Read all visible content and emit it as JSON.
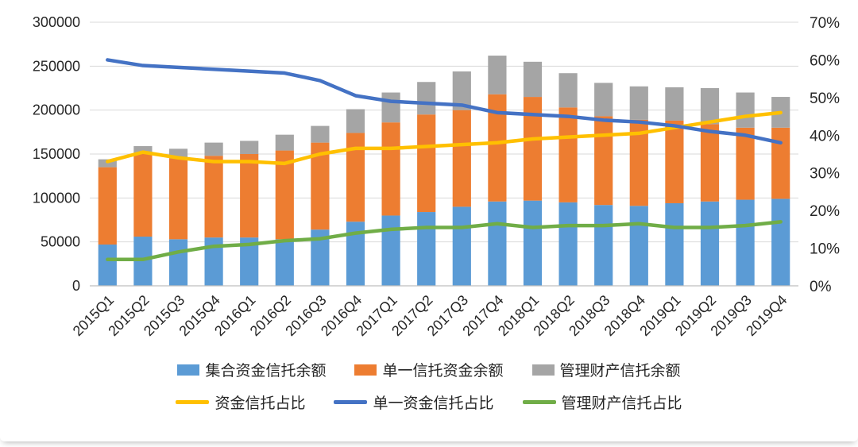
{
  "chart_data": {
    "type": "combo-stacked-bar-line",
    "categories": [
      "2015Q1",
      "2015Q2",
      "2015Q3",
      "2015Q4",
      "2016Q1",
      "2016Q2",
      "2016Q3",
      "2016Q4",
      "2017Q1",
      "2017Q2",
      "2017Q3",
      "2017Q4",
      "2018Q1",
      "2018Q2",
      "2018Q3",
      "2018Q4",
      "2019Q1",
      "2019Q2",
      "2019Q3",
      "2019Q4"
    ],
    "bar_series": [
      {
        "name": "集合资金信托余额",
        "color": "#5B9BD5",
        "axis": "left",
        "values": [
          47000,
          56000,
          53000,
          55000,
          55000,
          53000,
          64000,
          73000,
          80000,
          84000,
          90000,
          96000,
          97000,
          95000,
          92000,
          91000,
          94000,
          96000,
          98000,
          99000
        ]
      },
      {
        "name": "单一信托资金余额",
        "color": "#ED7D31",
        "axis": "left",
        "values": [
          88000,
          95000,
          92000,
          93000,
          95000,
          101000,
          99000,
          101000,
          106000,
          111000,
          110000,
          122000,
          118000,
          108000,
          101000,
          98000,
          94000,
          88000,
          82000,
          81000
        ]
      },
      {
        "name": "管理财产信托余额",
        "color": "#A5A5A5",
        "axis": "left",
        "values": [
          9000,
          8000,
          11000,
          15000,
          15000,
          18000,
          19000,
          27000,
          34000,
          37000,
          44000,
          44000,
          40000,
          39000,
          38000,
          38000,
          38000,
          41000,
          40000,
          35000
        ]
      }
    ],
    "line_series": [
      {
        "name": "资金信托占比",
        "color": "#FFC000",
        "axis": "right",
        "values": [
          33,
          35.5,
          34,
          33,
          33,
          32.5,
          35,
          36.5,
          36.5,
          37,
          37.5,
          38,
          39,
          39.5,
          40,
          40.5,
          42,
          43.5,
          45,
          46
        ]
      },
      {
        "name": "单一资金信托占比",
        "color": "#4472C4",
        "axis": "right",
        "values": [
          60,
          58.5,
          58,
          57.5,
          57,
          56.5,
          54.5,
          50.5,
          49,
          48.5,
          48,
          46,
          45.5,
          45,
          44,
          43.5,
          42.5,
          41,
          40,
          38
        ]
      },
      {
        "name": "管理财产信托占比",
        "color": "#70AD47",
        "axis": "right",
        "values": [
          7,
          7,
          9,
          10.5,
          11,
          12,
          12.5,
          14,
          15,
          15.5,
          15.5,
          16.5,
          15.5,
          16,
          16,
          16.5,
          15.5,
          15.5,
          16,
          17
        ]
      }
    ],
    "left_axis": {
      "min": 0,
      "max": 300000,
      "step": 50000,
      "tick_labels": [
        "0",
        "50000",
        "100000",
        "150000",
        "200000",
        "250000",
        "300000"
      ]
    },
    "right_axis": {
      "min": 0,
      "max": 70,
      "step": 10,
      "tick_labels": [
        "0%",
        "10%",
        "20%",
        "30%",
        "40%",
        "50%",
        "60%",
        "70%"
      ]
    },
    "grid": true,
    "legend_position": "bottom",
    "title": ""
  }
}
